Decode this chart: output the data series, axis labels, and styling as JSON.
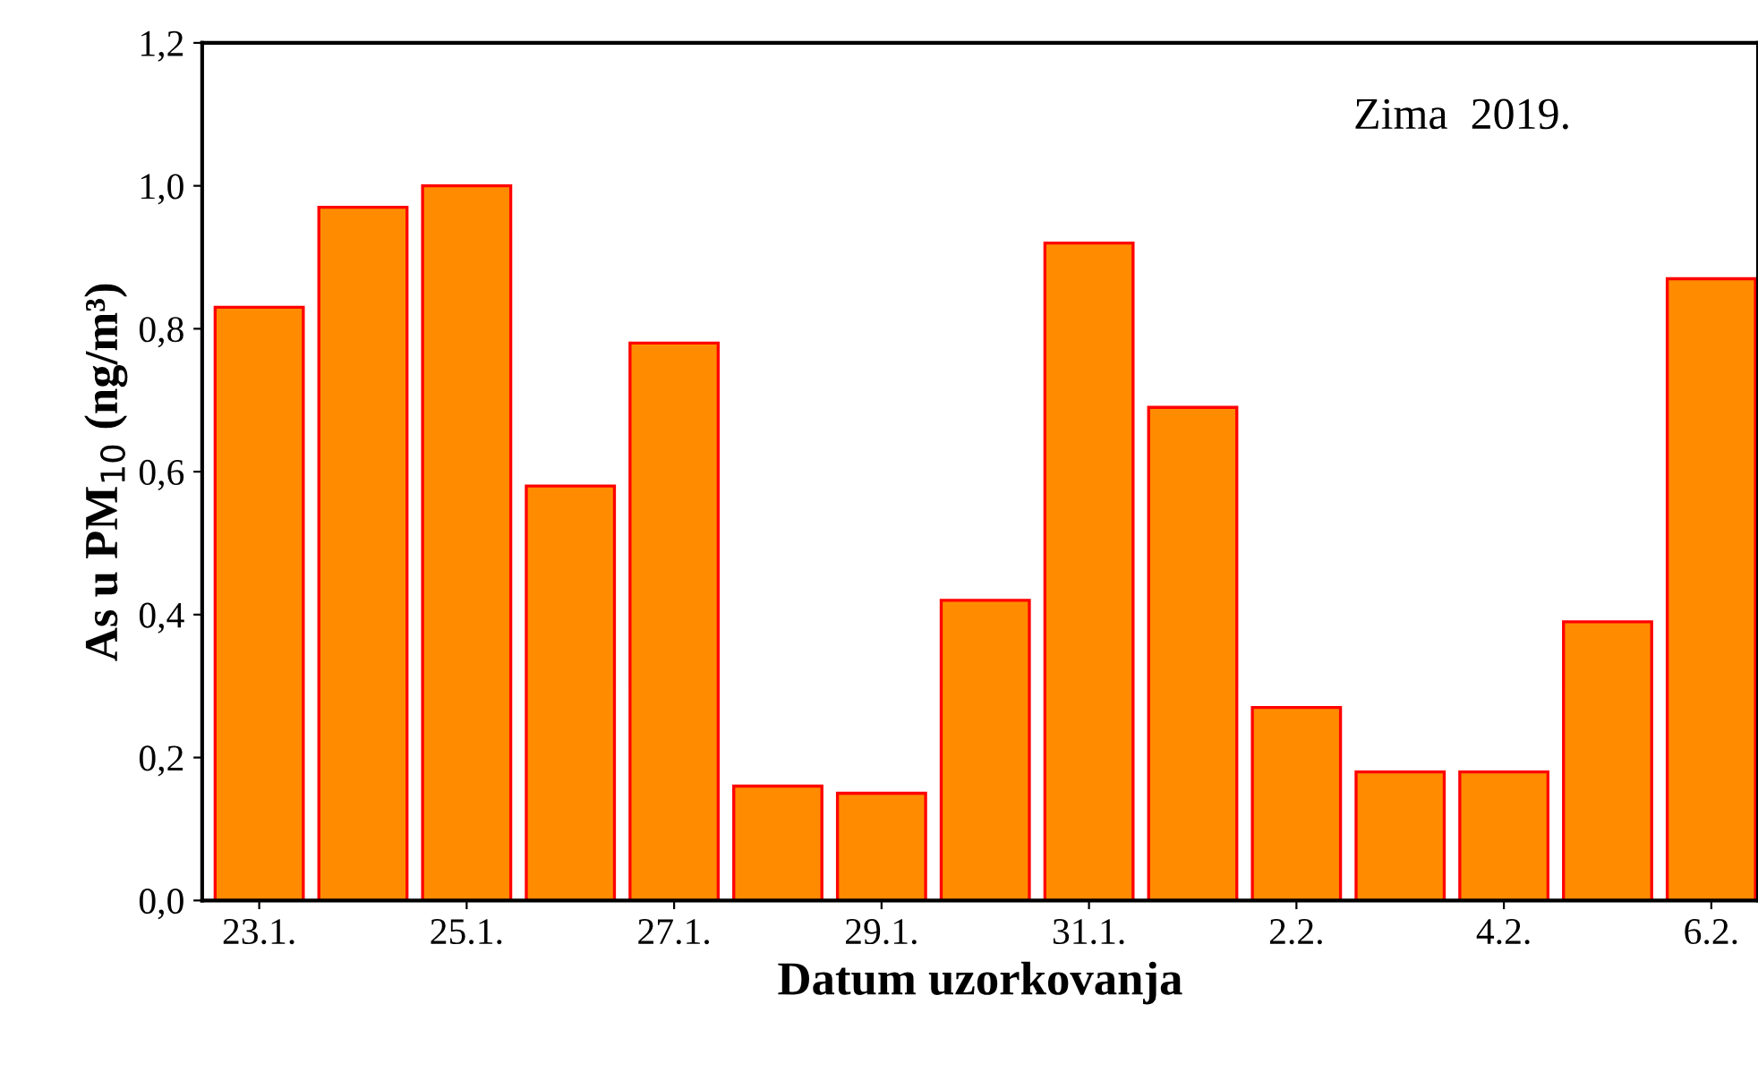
{
  "chart_data": {
    "type": "bar",
    "xlabel": "Datum uzorkovanja",
    "ylabel": "As u PM$_{10}$ (ng/m³)",
    "annotations": [
      "Zima  2019."
    ],
    "categories": [
      "23.1.",
      null,
      "25.1.",
      null,
      "27.1.",
      null,
      "29.1.",
      null,
      "31.1.",
      null,
      "2.2.",
      null,
      "4.2.",
      null,
      "6.2."
    ],
    "values": [
      0.83,
      0.97,
      1.0,
      0.58,
      0.78,
      0.16,
      0.15,
      0.42,
      0.92,
      0.69,
      0.27,
      0.18,
      0.18,
      0.39,
      0.87
    ],
    "color": "#ff8c00",
    "ylim": [
      0,
      1.2
    ],
    "yticks": [
      {
        "value": 0,
        "label": "0,0"
      },
      {
        "value": 0.2,
        "label": "0,2"
      },
      {
        "value": 0.4,
        "label": "0,4"
      },
      {
        "value": 0.6,
        "label": "0,6"
      },
      {
        "value": 0.8,
        "label": "0,8"
      },
      {
        "value": 1.0,
        "label": "1,0"
      },
      {
        "value": 1.2,
        "label": "1,2"
      }
    ],
    "grid": false
  }
}
